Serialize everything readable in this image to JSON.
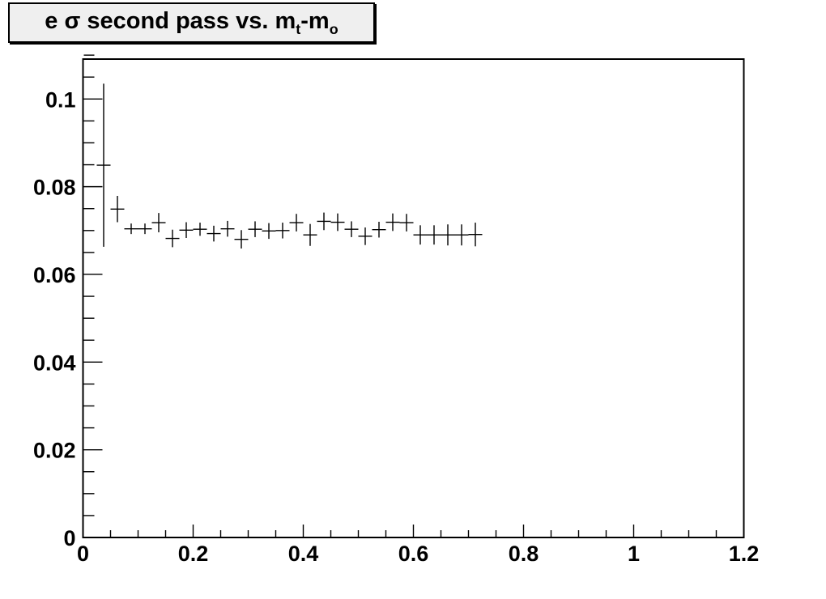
{
  "window": {
    "background": "#ffffff",
    "frame_fill": "#ffffff",
    "axis_color": "#000000",
    "data_color": "#000000"
  },
  "title_pave": {
    "full_text": "e σ second pass vs. m_t-m_o",
    "fill": "#efefef",
    "border_color": "#000000",
    "parts": {
      "seg1": "e σ second pass vs. m",
      "sub1": "t",
      "seg2": "-m",
      "sub2": "o"
    }
  },
  "chart_data": {
    "type": "scatter",
    "title": "e σ second pass vs. m_t-m_o",
    "xlabel": "",
    "ylabel": "",
    "xlim": [
      0,
      1.2
    ],
    "ylim": [
      0,
      0.1091
    ],
    "grid": false,
    "legend": null,
    "marker_style": "cross-error-bars",
    "color": "#000000",
    "x_major_ticks": [
      0,
      0.2,
      0.4,
      0.6,
      0.8,
      1.0,
      1.2
    ],
    "x_major_labels": [
      "0",
      "0.2",
      "0.4",
      "0.6",
      "0.8",
      "1",
      "1.2"
    ],
    "x_minor_step": 0.05,
    "y_major_ticks": [
      0,
      0.02,
      0.04,
      0.06,
      0.08,
      0.1
    ],
    "y_major_labels": [
      "0",
      "0.02",
      "0.04",
      "0.06",
      "0.08",
      "0.1"
    ],
    "y_minor_step": 0.005,
    "x_half_width": 0.0125,
    "points": [
      {
        "x": 0.0375,
        "y": 0.0849,
        "ey": 0.0186
      },
      {
        "x": 0.0625,
        "y": 0.0749,
        "ey": 0.003
      },
      {
        "x": 0.0875,
        "y": 0.0704,
        "ey": 0.0012
      },
      {
        "x": 0.1125,
        "y": 0.0704,
        "ey": 0.0012
      },
      {
        "x": 0.1375,
        "y": 0.0718,
        "ey": 0.0022
      },
      {
        "x": 0.1625,
        "y": 0.0682,
        "ey": 0.002
      },
      {
        "x": 0.1875,
        "y": 0.0701,
        "ey": 0.0018
      },
      {
        "x": 0.2125,
        "y": 0.0703,
        "ey": 0.0015
      },
      {
        "x": 0.2375,
        "y": 0.0693,
        "ey": 0.0018
      },
      {
        "x": 0.2625,
        "y": 0.0704,
        "ey": 0.0018
      },
      {
        "x": 0.2875,
        "y": 0.068,
        "ey": 0.0021
      },
      {
        "x": 0.3125,
        "y": 0.0703,
        "ey": 0.0018
      },
      {
        "x": 0.3375,
        "y": 0.0699,
        "ey": 0.0018
      },
      {
        "x": 0.3625,
        "y": 0.07,
        "ey": 0.0018
      },
      {
        "x": 0.3875,
        "y": 0.0718,
        "ey": 0.002
      },
      {
        "x": 0.4125,
        "y": 0.069,
        "ey": 0.0025
      },
      {
        "x": 0.4375,
        "y": 0.0721,
        "ey": 0.002
      },
      {
        "x": 0.4625,
        "y": 0.0719,
        "ey": 0.002
      },
      {
        "x": 0.4875,
        "y": 0.0703,
        "ey": 0.0018
      },
      {
        "x": 0.5125,
        "y": 0.0687,
        "ey": 0.002
      },
      {
        "x": 0.5375,
        "y": 0.0702,
        "ey": 0.0018
      },
      {
        "x": 0.5625,
        "y": 0.0719,
        "ey": 0.002
      },
      {
        "x": 0.5875,
        "y": 0.0718,
        "ey": 0.002
      },
      {
        "x": 0.6125,
        "y": 0.069,
        "ey": 0.0022
      },
      {
        "x": 0.6375,
        "y": 0.069,
        "ey": 0.0022
      },
      {
        "x": 0.6625,
        "y": 0.069,
        "ey": 0.0024
      },
      {
        "x": 0.6875,
        "y": 0.069,
        "ey": 0.0024
      },
      {
        "x": 0.7125,
        "y": 0.0691,
        "ey": 0.0027
      }
    ]
  }
}
